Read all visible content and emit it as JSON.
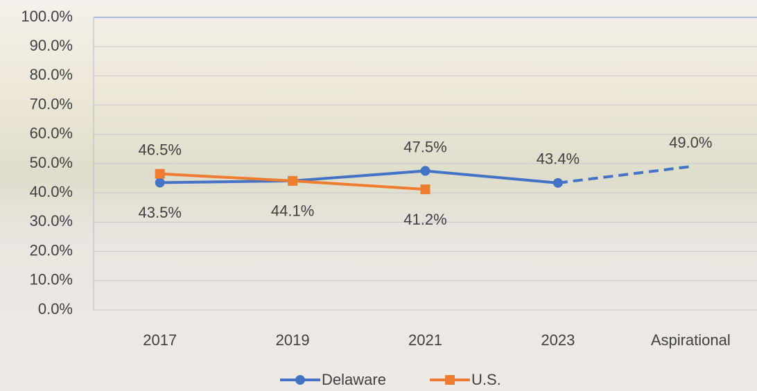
{
  "chart_data": {
    "type": "line",
    "categories": [
      "2017",
      "2019",
      "2021",
      "2023",
      "Aspirational"
    ],
    "series": [
      {
        "name": "Delaware",
        "color": "#4472c4",
        "values": [
          43.5,
          44.1,
          47.5,
          43.4,
          49.0
        ],
        "value_labels": [
          "43.5%",
          "44.1%",
          "47.5%",
          "43.4%",
          "49.0%"
        ],
        "dashed_from": 3
      },
      {
        "name": "U.S.",
        "color": "#ed7d31",
        "values": [
          46.5,
          44.1,
          41.2,
          null,
          null
        ],
        "value_labels": [
          "46.5%",
          null,
          "41.2%",
          null,
          null
        ]
      }
    ],
    "ylim": [
      0,
      100
    ],
    "yticks": [
      {
        "value": 0,
        "label": "0.0%"
      },
      {
        "value": 10,
        "label": "10.0%"
      },
      {
        "value": 20,
        "label": "20.0%"
      },
      {
        "value": 30,
        "label": "30.0%"
      },
      {
        "value": 40,
        "label": "40.0%"
      },
      {
        "value": 50,
        "label": "50.0%"
      },
      {
        "value": 60,
        "label": "60.0%"
      },
      {
        "value": 70,
        "label": "70.0%"
      },
      {
        "value": 80,
        "label": "80.0%"
      },
      {
        "value": 90,
        "label": "90.0%"
      },
      {
        "value": 100,
        "label": "100.0%"
      }
    ],
    "grid": true,
    "legend": "bottom"
  }
}
